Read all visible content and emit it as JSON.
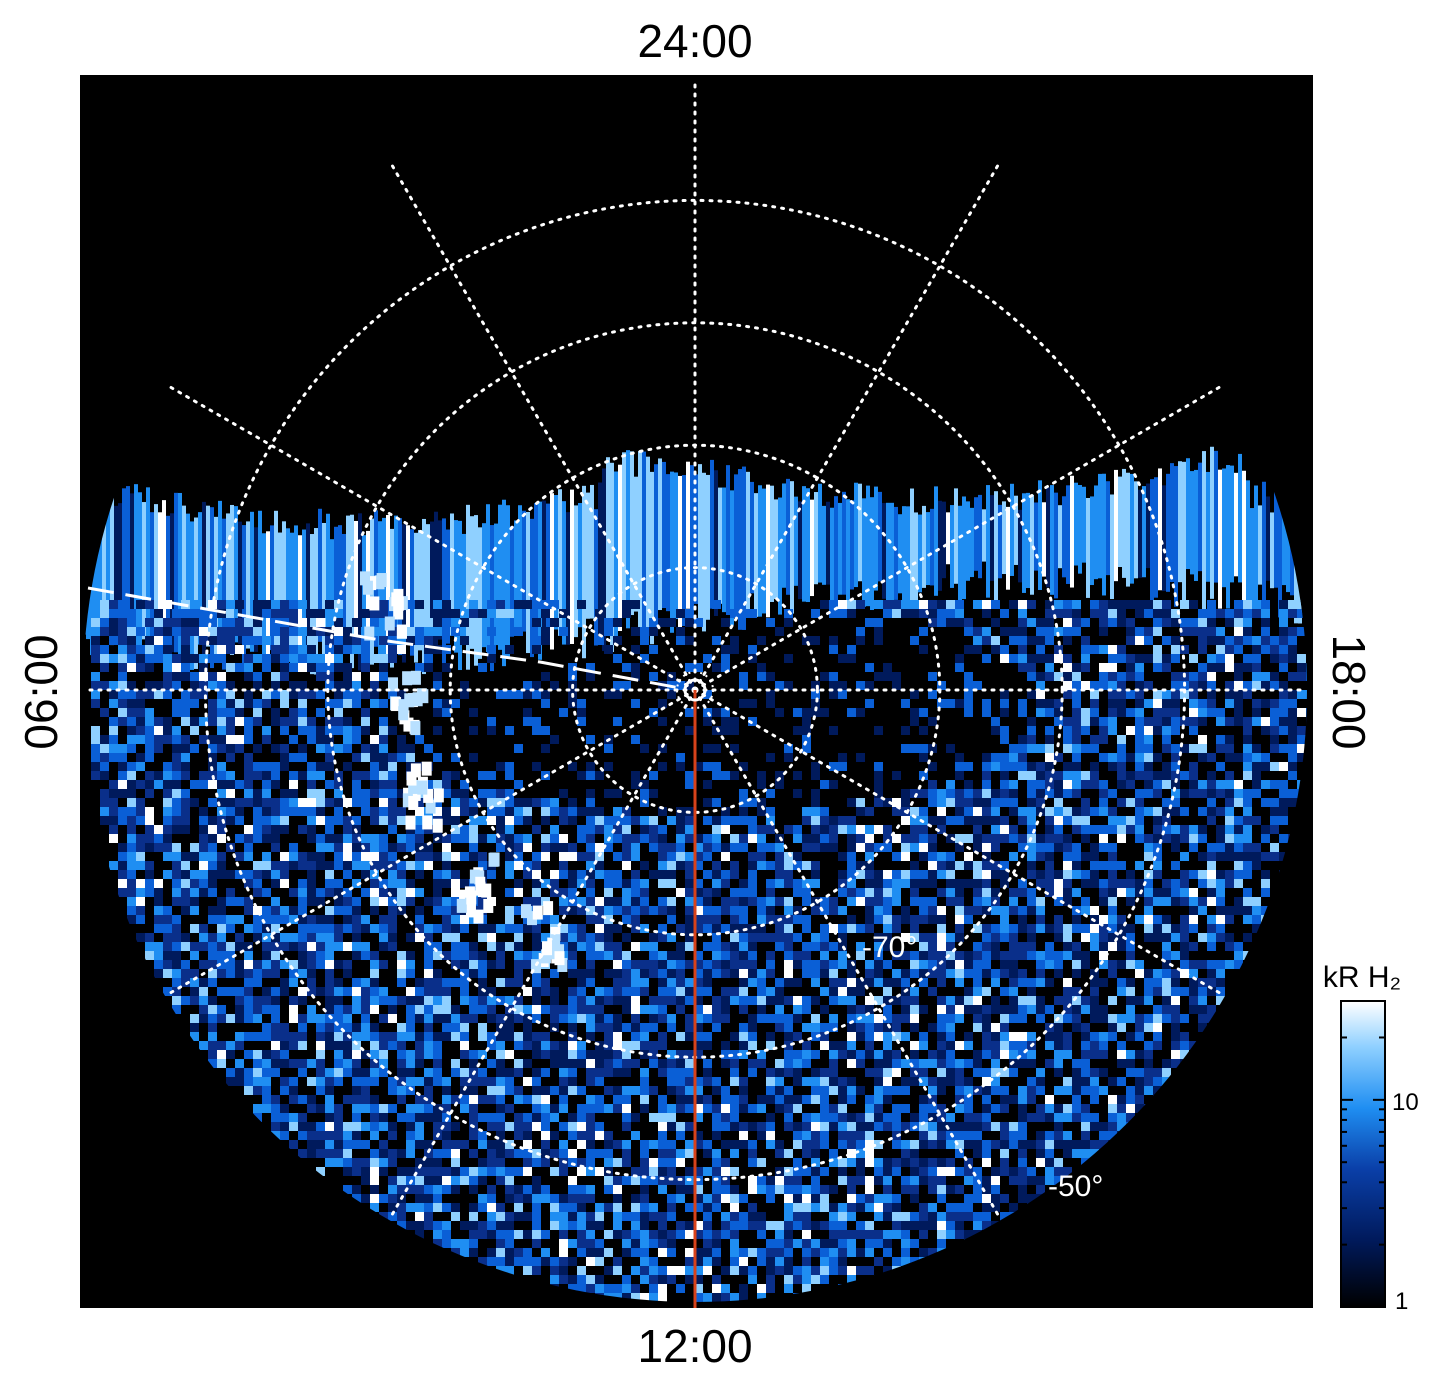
{
  "chart_data": {
    "type": "heatmap",
    "projection": "polar (south pole centred, local time)",
    "local_time_labels": {
      "top": "24:00",
      "left": "06:00",
      "right": "18:00",
      "bottom": "12:00"
    },
    "latitude_labels": [
      "-70°",
      "-50°"
    ],
    "latitude_circles_deg": [
      -80,
      -70,
      -60,
      -50
    ],
    "meridian_spacing_hours": 2,
    "colorbar": {
      "title": "kR H₂",
      "scale": "log",
      "range": [
        1,
        30
      ],
      "tick_labels": [
        "1",
        "10"
      ],
      "colors": [
        "#000000",
        "#001a5c",
        "#0a5fd6",
        "#2196f5",
        "#b8e0ff",
        "#ffffff"
      ]
    },
    "overlays": [
      {
        "name": "red meridian",
        "color": "#d8421a",
        "from_local_time": "pole",
        "to_local_time": "12:00"
      },
      {
        "name": "white dashed line",
        "color": "#ffffff",
        "style": "dashed",
        "toward_local_time": "06:00"
      }
    ]
  }
}
